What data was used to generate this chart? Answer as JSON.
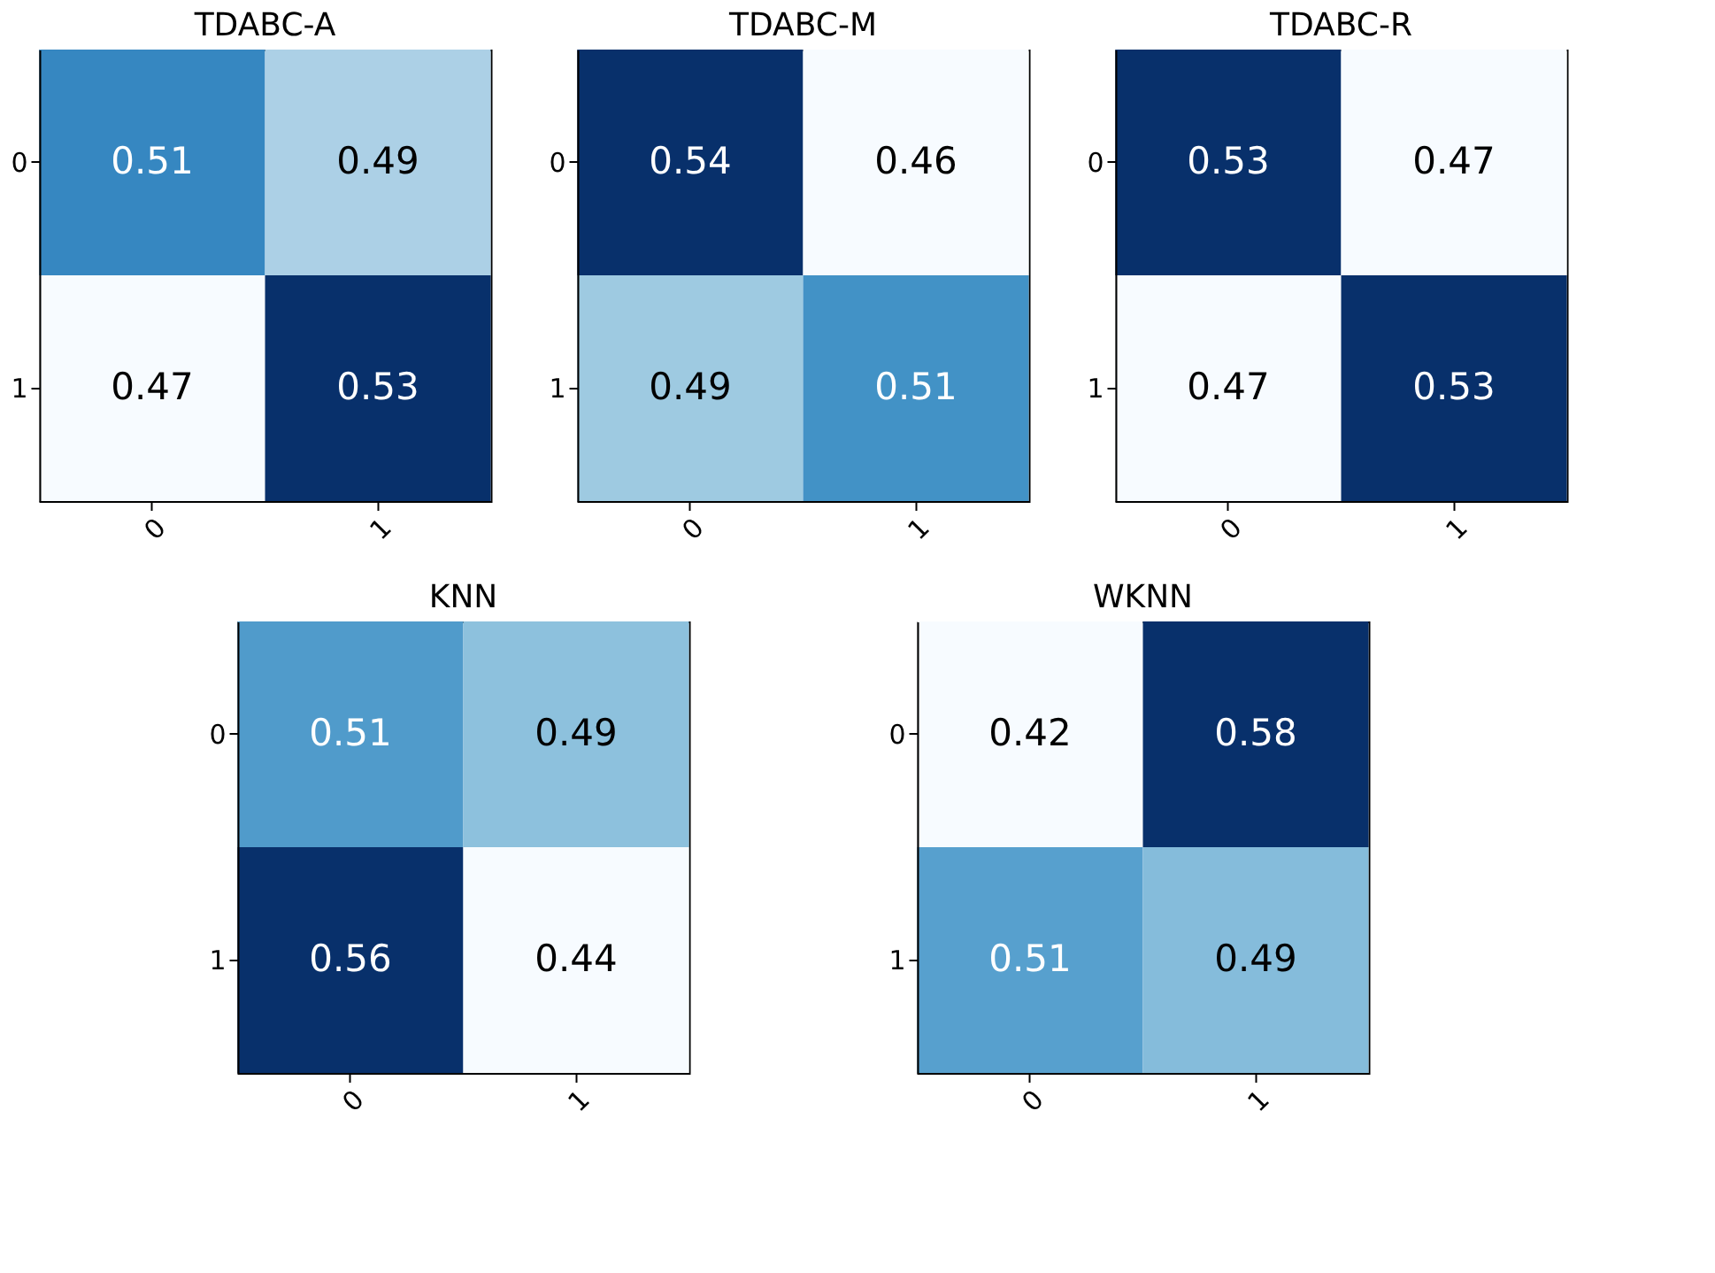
{
  "chart_data": [
    {
      "type": "heatmap",
      "title": "TDABC-A",
      "categories": [
        "0",
        "1"
      ],
      "y_categories": [
        "0",
        "1"
      ],
      "cells": [
        [
          0.51,
          0.49
        ],
        [
          0.47,
          0.53
        ]
      ],
      "data_labels": true,
      "grid": false
    },
    {
      "type": "heatmap",
      "title": "TDABC-M",
      "categories": [
        "0",
        "1"
      ],
      "y_categories": [
        "0",
        "1"
      ],
      "cells": [
        [
          0.54,
          0.46
        ],
        [
          0.49,
          0.51
        ]
      ],
      "data_labels": true,
      "grid": false
    },
    {
      "type": "heatmap",
      "title": "TDABC-R",
      "categories": [
        "0",
        "1"
      ],
      "y_categories": [
        "0",
        "1"
      ],
      "cells": [
        [
          0.53,
          0.47
        ],
        [
          0.47,
          0.53
        ]
      ],
      "data_labels": true,
      "grid": false
    },
    {
      "type": "heatmap",
      "title": "KNN",
      "categories": [
        "0",
        "1"
      ],
      "y_categories": [
        "0",
        "1"
      ],
      "cells": [
        [
          0.51,
          0.49
        ],
        [
          0.56,
          0.44
        ]
      ],
      "data_labels": true,
      "grid": false
    },
    {
      "type": "heatmap",
      "title": "WKNN",
      "categories": [
        "0",
        "1"
      ],
      "y_categories": [
        "0",
        "1"
      ],
      "cells": [
        [
          0.42,
          0.58
        ],
        [
          0.51,
          0.49
        ]
      ],
      "data_labels": true,
      "grid": false
    }
  ]
}
